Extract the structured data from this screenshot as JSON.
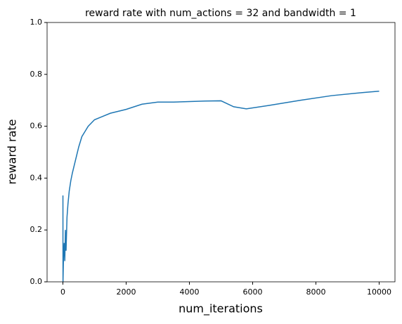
{
  "chart_data": {
    "type": "line",
    "title": "reward rate with num_actions = 32 and bandwidth = 1",
    "x_label": "num_iterations",
    "y_label": "reward rate",
    "x": [
      1,
      3,
      20,
      40,
      60,
      80,
      100,
      130,
      160,
      200,
      250,
      300,
      400,
      500,
      600,
      700,
      800,
      1000,
      1200,
      1500,
      2000,
      2500,
      3000,
      3500,
      4000,
      4500,
      5000,
      5400,
      5800,
      6500,
      7500,
      8500,
      9500,
      10000
    ],
    "series": [
      {
        "color": "#1f77b4",
        "values": [
          0.333,
          0.0,
          0.1,
          0.15,
          0.08,
          0.2,
          0.12,
          0.25,
          0.3,
          0.35,
          0.39,
          0.42,
          0.47,
          0.52,
          0.56,
          0.58,
          0.6,
          0.625,
          0.635,
          0.65,
          0.665,
          0.685,
          0.693,
          0.693,
          0.695,
          0.697,
          0.698,
          0.675,
          0.667,
          0.68,
          0.7,
          0.718,
          0.73,
          0.735
        ]
      }
    ],
    "xlim": [
      -500,
      10500
    ],
    "ylim": [
      0,
      1
    ],
    "xticks": [
      0,
      2000,
      4000,
      6000,
      8000,
      10000
    ],
    "yticks": [
      {
        "value": 0,
        "label": "0.0"
      },
      0.2,
      0.4,
      0.6,
      0.8,
      {
        "value": 1,
        "label": "1.0"
      }
    ]
  }
}
